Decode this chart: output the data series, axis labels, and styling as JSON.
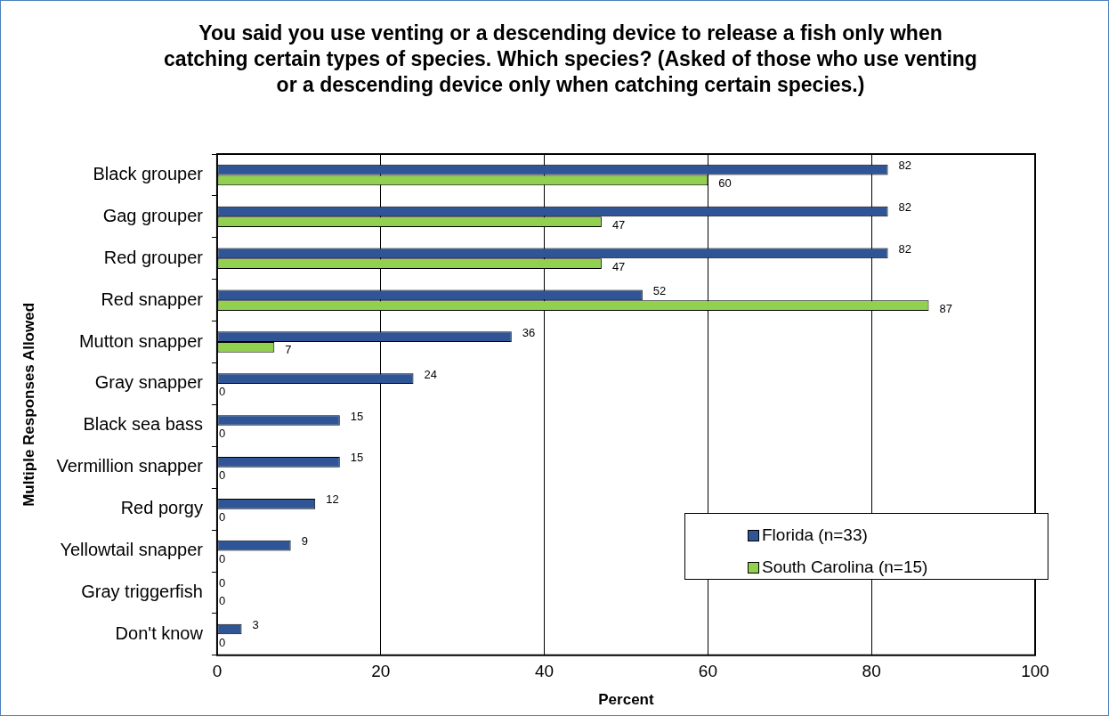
{
  "chart_data": {
    "type": "bar",
    "orientation": "horizontal",
    "title": "You said you use venting or a descending device to release a fish only when catching certain types of species. Which species? (Asked of those who use venting or a descending device only when catching certain species.)",
    "xlabel": "Percent",
    "ylabel": "Multiple Responses Allowed",
    "categories": [
      "Black grouper",
      "Gag grouper",
      "Red grouper",
      "Red snapper",
      "Mutton snapper",
      "Gray snapper",
      "Black sea bass",
      "Vermillion snapper",
      "Red porgy",
      "Yellowtail snapper",
      "Gray triggerfish",
      "Don't know"
    ],
    "series": [
      {
        "name": "Florida (n=33)",
        "color": "#2f5597",
        "values": [
          82,
          82,
          82,
          52,
          36,
          24,
          15,
          15,
          12,
          9,
          0,
          3
        ]
      },
      {
        "name": "South Carolina (n=15)",
        "color": "#92d050",
        "values": [
          60,
          47,
          47,
          87,
          7,
          0,
          0,
          0,
          0,
          0,
          0,
          0
        ]
      }
    ],
    "xlim": [
      0,
      100
    ],
    "xticks": [
      0,
      20,
      40,
      60,
      80,
      100
    ],
    "grid": "x",
    "legend": "bottom right",
    "data_labels": true
  }
}
